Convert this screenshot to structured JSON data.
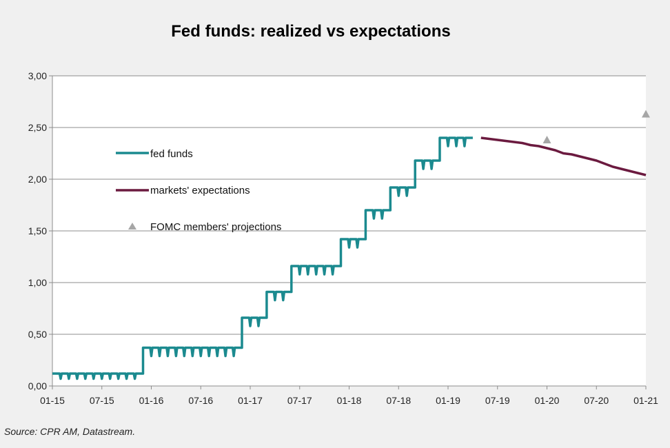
{
  "chart_data": {
    "type": "line",
    "title": "Fed funds: realized vs expectations",
    "xlabel": "",
    "ylabel": "",
    "ylim": [
      0,
      3
    ],
    "y_ticks": [
      "0,00",
      "0,50",
      "1,00",
      "1,50",
      "2,00",
      "2,50",
      "3,00"
    ],
    "y_tick_values": [
      0,
      0.5,
      1,
      1.5,
      2,
      2.5,
      3
    ],
    "x_ticks": [
      "01-15",
      "07-15",
      "01-16",
      "07-16",
      "01-17",
      "07-17",
      "01-18",
      "07-18",
      "01-19",
      "07-19",
      "01-20",
      "07-20",
      "01-21"
    ],
    "x_range": [
      "2015-01",
      "2021-01"
    ],
    "grid": "horizontal",
    "legend_position": "inside-left",
    "series": [
      {
        "name": "fed funds",
        "type": "line",
        "color": "#1b8a8f",
        "steps": [
          {
            "from": "2015-01",
            "to": "2015-12",
            "value": 0.12
          },
          {
            "from": "2015-12",
            "to": "2016-12",
            "value": 0.37
          },
          {
            "from": "2016-12",
            "to": "2017-03",
            "value": 0.66
          },
          {
            "from": "2017-03",
            "to": "2017-06",
            "value": 0.91
          },
          {
            "from": "2017-06",
            "to": "2017-12",
            "value": 1.16
          },
          {
            "from": "2017-12",
            "to": "2018-03",
            "value": 1.42
          },
          {
            "from": "2018-03",
            "to": "2018-06",
            "value": 1.7
          },
          {
            "from": "2018-06",
            "to": "2018-09",
            "value": 1.92
          },
          {
            "from": "2018-09",
            "to": "2018-12",
            "value": 2.18
          },
          {
            "from": "2018-12",
            "to": "2019-04",
            "value": 2.4
          }
        ]
      },
      {
        "name": "markets' expectations",
        "type": "line",
        "color": "#6b1a3f",
        "x": [
          "2019-05",
          "2019-06",
          "2019-07",
          "2019-08",
          "2019-09",
          "2019-10",
          "2019-11",
          "2019-12",
          "2020-01",
          "2020-02",
          "2020-03",
          "2020-04",
          "2020-05",
          "2020-06",
          "2020-07",
          "2020-08",
          "2020-09",
          "2020-10",
          "2020-11",
          "2020-12",
          "2021-01"
        ],
        "values": [
          2.4,
          2.39,
          2.38,
          2.37,
          2.36,
          2.35,
          2.33,
          2.32,
          2.3,
          2.28,
          2.25,
          2.24,
          2.22,
          2.2,
          2.18,
          2.15,
          2.12,
          2.1,
          2.08,
          2.06,
          2.04
        ]
      },
      {
        "name": "FOMC members' projections",
        "type": "scatter",
        "marker": "triangle",
        "color": "#a6a6a6",
        "x": [
          "2020-01",
          "2021-01"
        ],
        "values": [
          2.38,
          2.63
        ]
      }
    ]
  },
  "source_note": "Source: CPR AM, Datastream."
}
